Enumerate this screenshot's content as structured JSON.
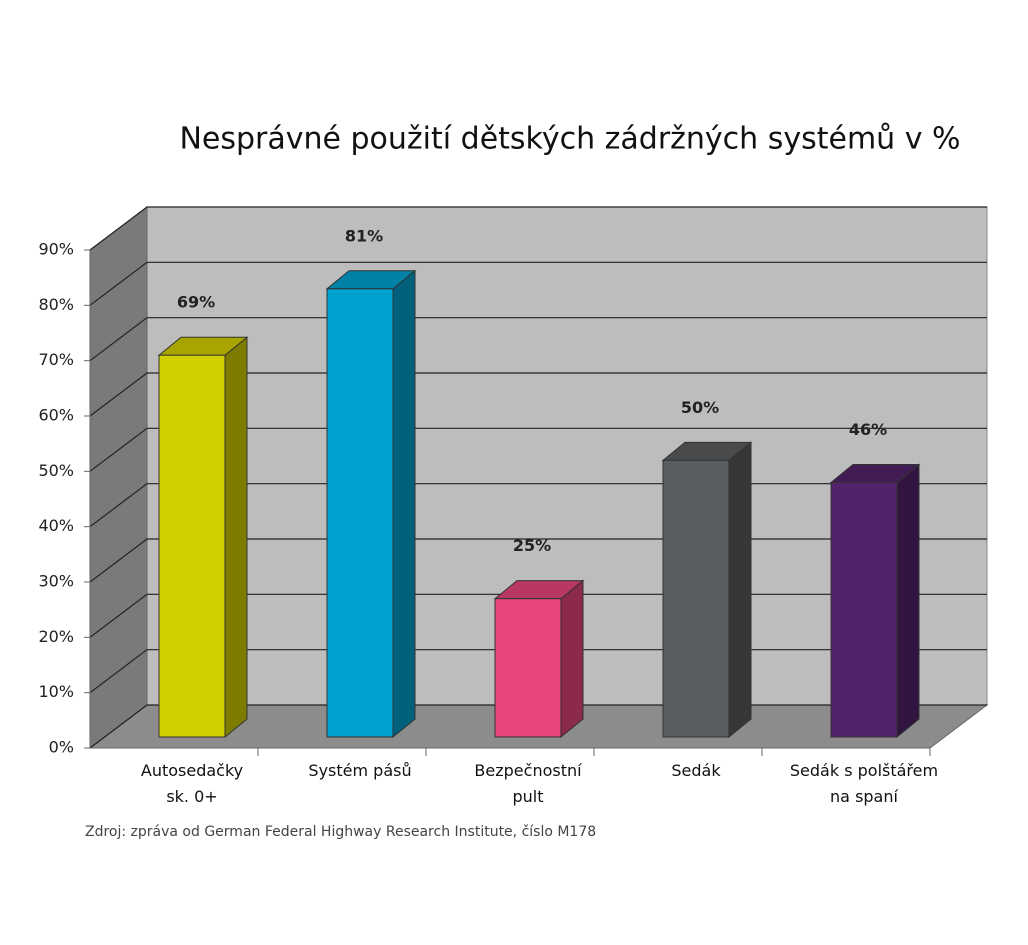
{
  "chart_data": {
    "type": "bar3d",
    "title": "Nesprávné použití dětských zádržných systémů v %",
    "categories": [
      "Autosedačky\nsk. 0+",
      "Systém pásů",
      "Bezpečnostní\npult",
      "Sedák",
      "Sedák s polštářem\nna spaní"
    ],
    "values": [
      69,
      81,
      25,
      50,
      46
    ],
    "value_labels": [
      "69%",
      "81%",
      "25%",
      "50%",
      "46%"
    ],
    "colors": [
      "#d2cf00",
      "#00a2cf",
      "#e8467a",
      "#5a5d60",
      "#52236b"
    ],
    "ylim": [
      0,
      90
    ],
    "yticks": [
      {
        "value": 0,
        "label": "0%"
      },
      {
        "value": 10,
        "label": "10%"
      },
      {
        "value": 20,
        "label": "20%"
      },
      {
        "value": 30,
        "label": "30%"
      },
      {
        "value": 40,
        "label": "40%"
      },
      {
        "value": 50,
        "label": "50%"
      },
      {
        "value": 60,
        "label": "60%"
      },
      {
        "value": 70,
        "label": "70%"
      },
      {
        "value": 80,
        "label": "80%"
      },
      {
        "value": 90,
        "label": "90%"
      }
    ],
    "grid": true,
    "source": "Zdroj: zpráva od German Federal Highway Research Institute, číslo M178"
  }
}
